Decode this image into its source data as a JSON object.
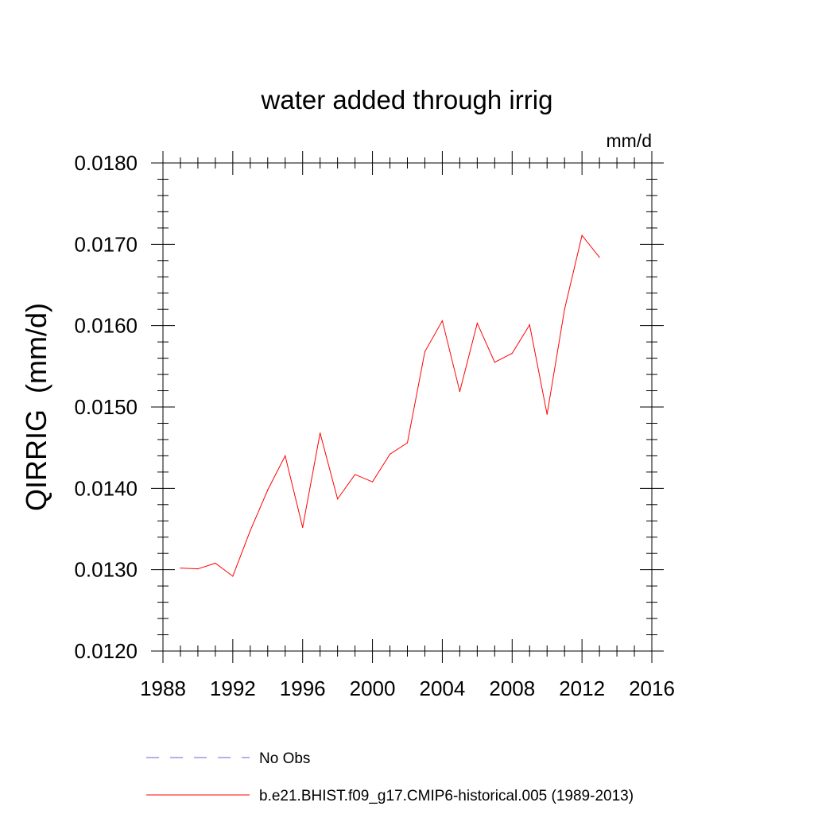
{
  "chart_data": {
    "type": "line",
    "title": "water added through irrig",
    "units_label": "mm/d",
    "xlabel": "",
    "ylabel": "QIRRIG  (mm/d)",
    "xlim": [
      1988,
      2016
    ],
    "ylim": [
      0.012,
      0.018
    ],
    "x_ticks": [
      1988,
      1992,
      1996,
      2000,
      2004,
      2008,
      2012,
      2016
    ],
    "x_tick_labels": [
      "1988",
      "1992",
      "1996",
      "2000",
      "2004",
      "2008",
      "2012",
      "2016"
    ],
    "y_ticks": [
      0.012,
      0.013,
      0.014,
      0.015,
      0.016,
      0.017,
      0.018
    ],
    "y_tick_labels": [
      "0.0120",
      "0.0130",
      "0.0140",
      "0.0150",
      "0.0160",
      "0.0170",
      "0.0180"
    ],
    "grid": false,
    "legend_position": "bottom",
    "series": [
      {
        "name": "b.e21.BHIST.f09_g17.CMIP6-historical.005 (1989-2013)",
        "color": "#ff0000",
        "dash": "solid",
        "x": [
          1989,
          1990,
          1991,
          1992,
          1993,
          1994,
          1995,
          1996,
          1997,
          1998,
          1999,
          2000,
          2001,
          2002,
          2003,
          2004,
          2005,
          2006,
          2007,
          2008,
          2009,
          2010,
          2011,
          2012,
          2013
        ],
        "values": [
          0.01302,
          0.01301,
          0.01308,
          0.01292,
          0.01348,
          0.01398,
          0.0144,
          0.01352,
          0.01468,
          0.01387,
          0.01417,
          0.01408,
          0.01442,
          0.01456,
          0.01568,
          0.01606,
          0.01519,
          0.01603,
          0.01555,
          0.01566,
          0.01601,
          0.01491,
          0.0162,
          0.01711,
          0.01684
        ]
      }
    ],
    "legend": [
      {
        "label": "No Obs",
        "color": "#6666cc",
        "dash": "dashed"
      },
      {
        "label": "b.e21.BHIST.f09_g17.CMIP6-historical.005 (1989-2013)",
        "color": "#ff0000",
        "dash": "solid"
      }
    ]
  }
}
